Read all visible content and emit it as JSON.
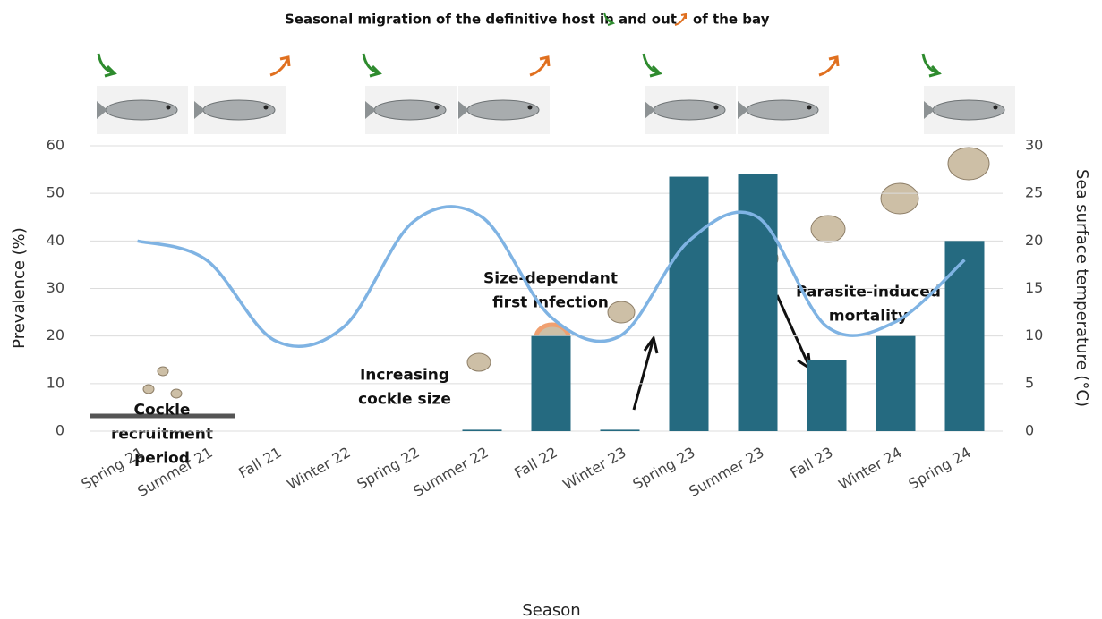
{
  "chart_data": {
    "type": "bar",
    "title_parts": [
      "Seasonal migration of the definitive host in",
      "and out",
      "of the bay"
    ],
    "x_label": "Season",
    "y_label": "Prevalence (%)",
    "y2_label": "Sea surface temperature (°C)",
    "annotations": [
      "Cockle recruitment period",
      "Increasing cockle size",
      "Size-dependant first infection",
      "Parasite-induced mortality"
    ],
    "categories": [
      "Spring 21",
      "Summer 21",
      "Fall 21",
      "Winter 22",
      "Spring 22",
      "Summer 22",
      "Fall 22",
      "Winter 23",
      "Spring 23",
      "Summer 23",
      "Fall 23",
      "Winter 24",
      "Spring 24"
    ],
    "series": [
      {
        "type": "bar",
        "color": "#256a80",
        "values": [
          0,
          0,
          0,
          0,
          0,
          0.3,
          20,
          0.3,
          53.5,
          54,
          15,
          20,
          40
        ]
      },
      {
        "type": "line",
        "axis": "y2",
        "color": "#7fb3e3",
        "values": [
          20,
          18,
          9.5,
          11,
          22,
          22.5,
          12,
          10,
          20,
          22.5,
          11,
          11.5,
          18
        ]
      }
    ],
    "ylim": [
      0,
      60
    ],
    "yticks": [
      0,
      10,
      20,
      30,
      40,
      50,
      60
    ],
    "y2lim": [
      0,
      30
    ],
    "y2ticks": [
      0,
      5,
      10,
      15,
      20,
      25,
      30
    ],
    "grid": true
  }
}
